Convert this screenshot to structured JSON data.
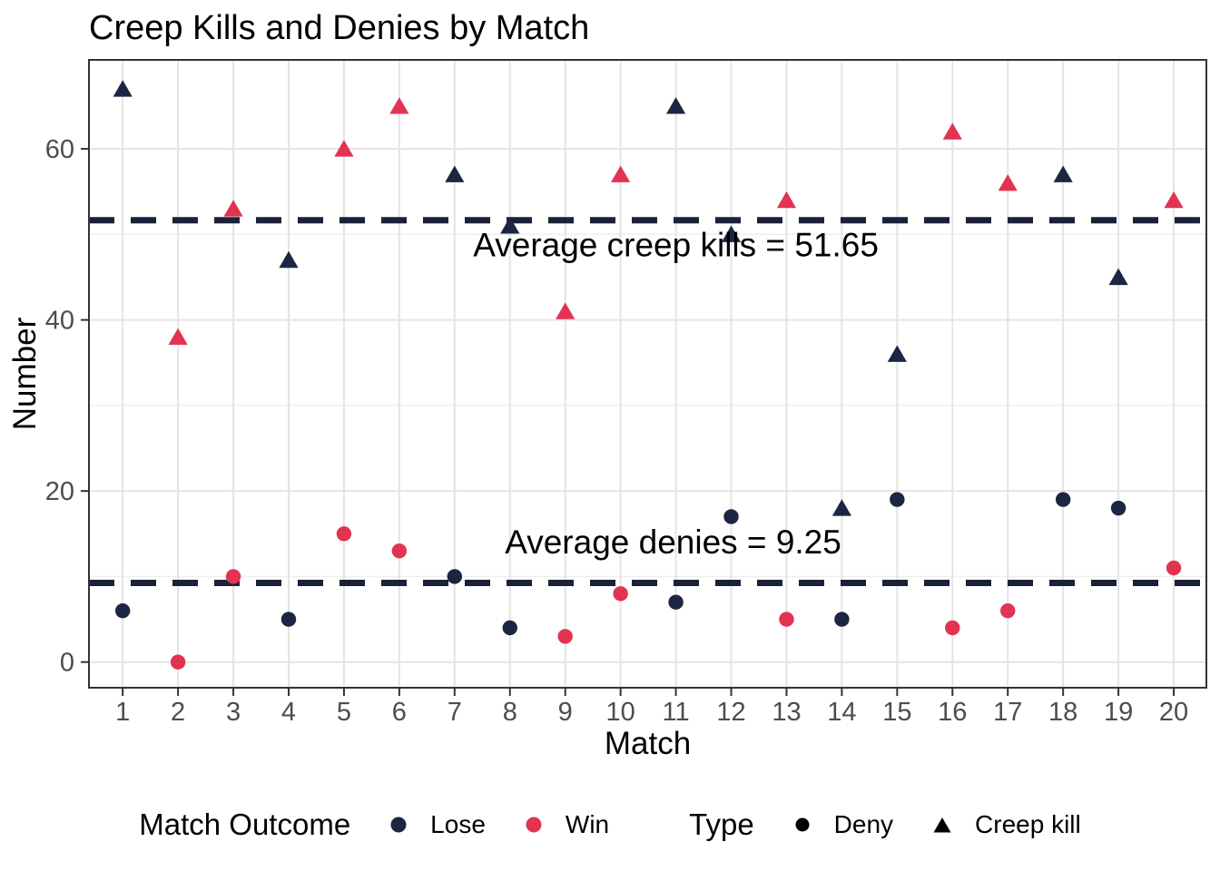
{
  "title": "Creep Kills and Denies by Match",
  "axes": {
    "x_title": "Match",
    "y_title": "Number"
  },
  "colors": {
    "lose": "#1C2642",
    "win": "#E23352",
    "dash_line": "#1B2138",
    "grid_major": "#E4E4E4",
    "grid_minor": "#EFEFEF",
    "panel_border": "#333333",
    "tick_label": "#4D4D4D",
    "legend_black": "#000000"
  },
  "legend": {
    "outcome_title": "Match Outcome",
    "outcome_items": [
      {
        "label": "Lose",
        "color": "#1C2642"
      },
      {
        "label": "Win",
        "color": "#E23352"
      }
    ],
    "type_title": "Type",
    "type_items": [
      {
        "label": "Deny",
        "marker": "circle",
        "color": "#000000"
      },
      {
        "label": "Creep kill",
        "marker": "triangle",
        "color": "#000000"
      }
    ]
  },
  "chart_data": {
    "type": "scatter",
    "title": "Creep Kills and Denies by Match",
    "xlabel": "Match",
    "ylabel": "Number",
    "categories": [
      1,
      2,
      3,
      4,
      5,
      6,
      7,
      8,
      9,
      10,
      11,
      12,
      13,
      14,
      15,
      16,
      17,
      18,
      19,
      20
    ],
    "series": [
      {
        "name": "Creep kill",
        "marker": "triangle",
        "values": [
          67,
          38,
          53,
          47,
          60,
          65,
          57,
          51,
          41,
          57,
          65,
          50,
          54,
          18,
          36,
          62,
          56,
          57,
          45,
          54
        ]
      },
      {
        "name": "Deny",
        "marker": "circle",
        "values": [
          6,
          0,
          10,
          5,
          15,
          13,
          10,
          4,
          3,
          8,
          7,
          17,
          5,
          5,
          19,
          4,
          6,
          19,
          18,
          11
        ]
      }
    ],
    "outcomes": [
      "Lose",
      "Win",
      "Win",
      "Lose",
      "Win",
      "Win",
      "Lose",
      "Lose",
      "Win",
      "Win",
      "Lose",
      "Lose",
      "Win",
      "Lose",
      "Lose",
      "Win",
      "Win",
      "Lose",
      "Lose",
      "Win"
    ],
    "outcome_colors": {
      "Lose": "#1C2642",
      "Win": "#E23352"
    },
    "hlines": [
      {
        "value": 51.65,
        "label": "Average creep kills = 51.65",
        "label_x": 11.0,
        "label_y": 48.8
      },
      {
        "value": 9.25,
        "label": "Average denies = 9.25",
        "label_x": 10.95,
        "label_y": 14.1
      }
    ],
    "x_ticks": [
      1,
      2,
      3,
      4,
      5,
      6,
      7,
      8,
      9,
      10,
      11,
      12,
      13,
      14,
      15,
      16,
      17,
      18,
      19,
      20
    ],
    "y_ticks": [
      0,
      20,
      40,
      60
    ],
    "y_minor_ticks": [
      10,
      30,
      50
    ],
    "xlim": [
      0.39,
      20.59
    ],
    "ylim": [
      -3,
      70.4
    ],
    "grid": true,
    "legend_position": "bottom"
  }
}
